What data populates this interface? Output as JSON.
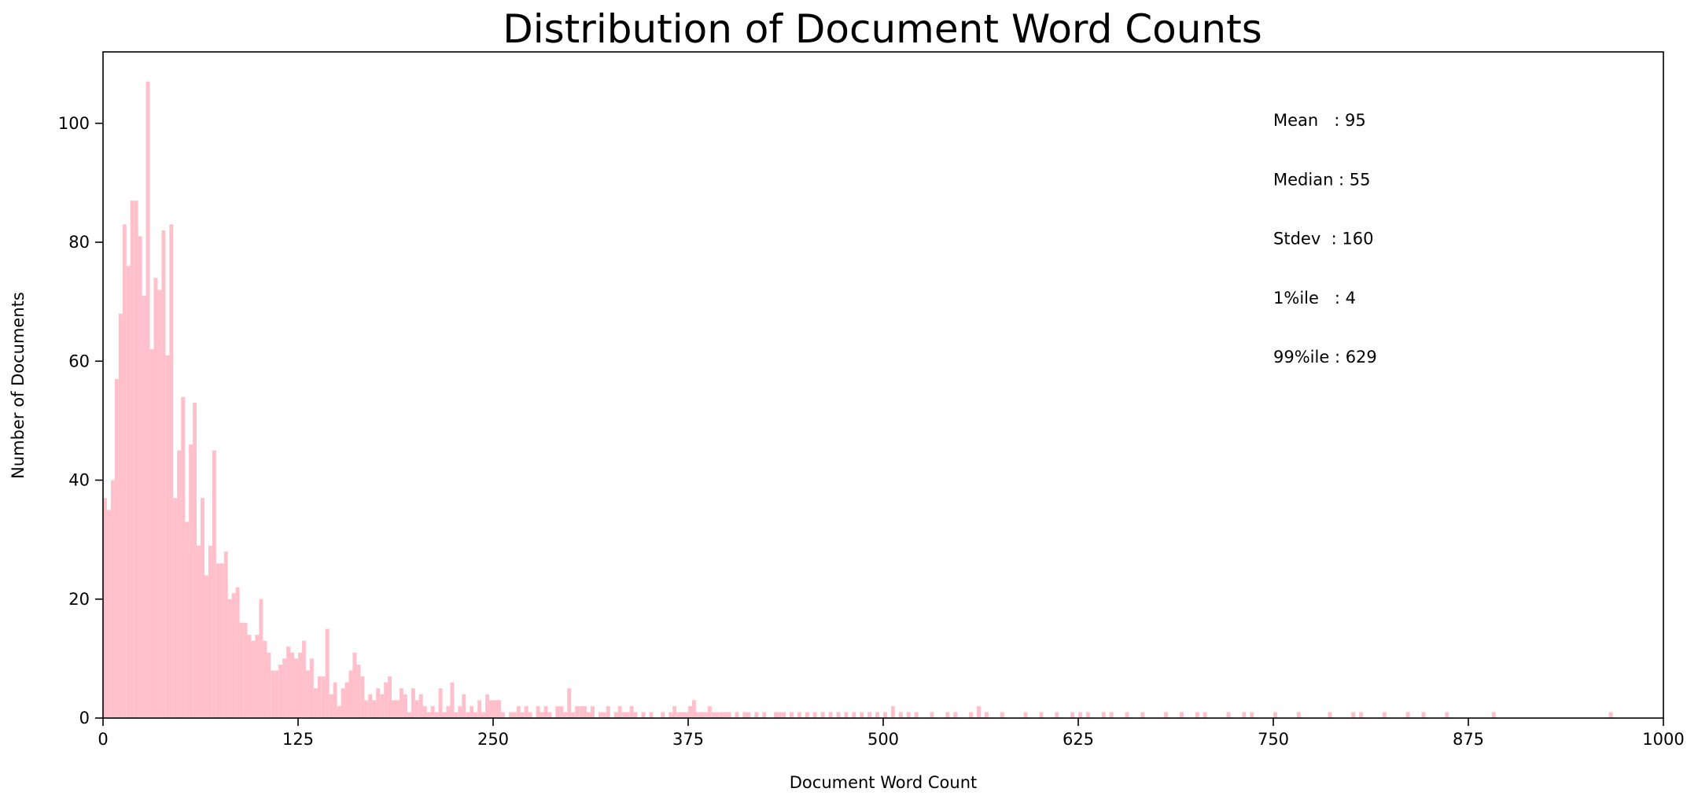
{
  "chart_data": {
    "type": "bar",
    "title": "Distribution of Document Word Counts",
    "xlabel": "Document Word Count",
    "ylabel": "Number of Documents",
    "xlim": [
      0,
      1000
    ],
    "ylim": [
      0,
      112
    ],
    "xticks": [
      0,
      125,
      250,
      375,
      500,
      625,
      750,
      875,
      1000
    ],
    "yticks": [
      0,
      20,
      40,
      60,
      80,
      100
    ],
    "bin_width": 2.5,
    "bar_color": "#ffc0cb",
    "grid": false,
    "legend": "none",
    "annotations": [
      {
        "label": "Mean   ",
        "value": "95"
      },
      {
        "label": "Median ",
        "value": "55"
      },
      {
        "label": "Stdev  ",
        "value": "160"
      },
      {
        "label": "1%ile   ",
        "value": "4"
      },
      {
        "label": "99%ile ",
        "value": "629"
      }
    ],
    "bins": [
      [
        0,
        37
      ],
      [
        2.5,
        35
      ],
      [
        5,
        40
      ],
      [
        7.5,
        57
      ],
      [
        10,
        68
      ],
      [
        12.5,
        83
      ],
      [
        15,
        76
      ],
      [
        17.5,
        87
      ],
      [
        20,
        87
      ],
      [
        22.5,
        81
      ],
      [
        25,
        71
      ],
      [
        27.5,
        107
      ],
      [
        30,
        62
      ],
      [
        32.5,
        74
      ],
      [
        35,
        72
      ],
      [
        37.5,
        82
      ],
      [
        40,
        61
      ],
      [
        42.5,
        83
      ],
      [
        45,
        37
      ],
      [
        47.5,
        45
      ],
      [
        50,
        54
      ],
      [
        52.5,
        33
      ],
      [
        55,
        46
      ],
      [
        57.5,
        53
      ],
      [
        60,
        29
      ],
      [
        62.5,
        37
      ],
      [
        65,
        24
      ],
      [
        67.5,
        29
      ],
      [
        70,
        45
      ],
      [
        72.5,
        26
      ],
      [
        75,
        26
      ],
      [
        77.5,
        28
      ],
      [
        80,
        20
      ],
      [
        82.5,
        21
      ],
      [
        85,
        22
      ],
      [
        87.5,
        16
      ],
      [
        90,
        16
      ],
      [
        92.5,
        14
      ],
      [
        95,
        13
      ],
      [
        97.5,
        14
      ],
      [
        100,
        20
      ],
      [
        102.5,
        13
      ],
      [
        105,
        11
      ],
      [
        107.5,
        8
      ],
      [
        110,
        8
      ],
      [
        112.5,
        9
      ],
      [
        115,
        10
      ],
      [
        117.5,
        12
      ],
      [
        120,
        11
      ],
      [
        122.5,
        10
      ],
      [
        125,
        11
      ],
      [
        127.5,
        13
      ],
      [
        130,
        8
      ],
      [
        132.5,
        10
      ],
      [
        135,
        5
      ],
      [
        137.5,
        7
      ],
      [
        140,
        7
      ],
      [
        142.5,
        15
      ],
      [
        145,
        4
      ],
      [
        147.5,
        6
      ],
      [
        150,
        2
      ],
      [
        152.5,
        5
      ],
      [
        155,
        6
      ],
      [
        157.5,
        8
      ],
      [
        160,
        11
      ],
      [
        162.5,
        9
      ],
      [
        165,
        7
      ],
      [
        167.5,
        3
      ],
      [
        170,
        4
      ],
      [
        172.5,
        3
      ],
      [
        175,
        5
      ],
      [
        177.5,
        4
      ],
      [
        180,
        6
      ],
      [
        182.5,
        7
      ],
      [
        185,
        3
      ],
      [
        187.5,
        3
      ],
      [
        190,
        5
      ],
      [
        192.5,
        4
      ],
      [
        195,
        1
      ],
      [
        197.5,
        5
      ],
      [
        200,
        3
      ],
      [
        202.5,
        4
      ],
      [
        205,
        2
      ],
      [
        207.5,
        1
      ],
      [
        210,
        2
      ],
      [
        212.5,
        1
      ],
      [
        215,
        5
      ],
      [
        217.5,
        1
      ],
      [
        220,
        2
      ],
      [
        222.5,
        6
      ],
      [
        225,
        1
      ],
      [
        227.5,
        2
      ],
      [
        230,
        4
      ],
      [
        232.5,
        1
      ],
      [
        235,
        2
      ],
      [
        237.5,
        1
      ],
      [
        240,
        3
      ],
      [
        242.5,
        1
      ],
      [
        245,
        4
      ],
      [
        247.5,
        3
      ],
      [
        250,
        3
      ],
      [
        252.5,
        3
      ],
      [
        255,
        1
      ],
      [
        260,
        1
      ],
      [
        262.5,
        1
      ],
      [
        265,
        2
      ],
      [
        267.5,
        1
      ],
      [
        270,
        2
      ],
      [
        272.5,
        1
      ],
      [
        277.5,
        2
      ],
      [
        280,
        1
      ],
      [
        282.5,
        2
      ],
      [
        285,
        1
      ],
      [
        290,
        2
      ],
      [
        292.5,
        2
      ],
      [
        295,
        1
      ],
      [
        297.5,
        5
      ],
      [
        300,
        1
      ],
      [
        302.5,
        2
      ],
      [
        305,
        2
      ],
      [
        307.5,
        2
      ],
      [
        310,
        1
      ],
      [
        312.5,
        2
      ],
      [
        317.5,
        1
      ],
      [
        320,
        1
      ],
      [
        322.5,
        2
      ],
      [
        327.5,
        1
      ],
      [
        330,
        2
      ],
      [
        332.5,
        1
      ],
      [
        335,
        1
      ],
      [
        337.5,
        2
      ],
      [
        340,
        1
      ],
      [
        345,
        1
      ],
      [
        350,
        1
      ],
      [
        357.5,
        1
      ],
      [
        362.5,
        1
      ],
      [
        365,
        2
      ],
      [
        367.5,
        1
      ],
      [
        370,
        1
      ],
      [
        372.5,
        1
      ],
      [
        375,
        2
      ],
      [
        377.5,
        3
      ],
      [
        380,
        1
      ],
      [
        382.5,
        1
      ],
      [
        385,
        1
      ],
      [
        387.5,
        2
      ],
      [
        390,
        1
      ],
      [
        392.5,
        1
      ],
      [
        395,
        1
      ],
      [
        397.5,
        1
      ],
      [
        400,
        1
      ],
      [
        405,
        1
      ],
      [
        410,
        1
      ],
      [
        412.5,
        1
      ],
      [
        417.5,
        1
      ],
      [
        422.5,
        1
      ],
      [
        430,
        1
      ],
      [
        432.5,
        1
      ],
      [
        435,
        1
      ],
      [
        440,
        1
      ],
      [
        445,
        1
      ],
      [
        450,
        1
      ],
      [
        455,
        1
      ],
      [
        460,
        1
      ],
      [
        465,
        1
      ],
      [
        470,
        1
      ],
      [
        475,
        1
      ],
      [
        480,
        1
      ],
      [
        485,
        1
      ],
      [
        490,
        1
      ],
      [
        495,
        1
      ],
      [
        500,
        1
      ],
      [
        505,
        2
      ],
      [
        510,
        1
      ],
      [
        515,
        1
      ],
      [
        520,
        1
      ],
      [
        530,
        1
      ],
      [
        540,
        1
      ],
      [
        545,
        1
      ],
      [
        555,
        1
      ],
      [
        560,
        2
      ],
      [
        565,
        1
      ],
      [
        575,
        1
      ],
      [
        590,
        1
      ],
      [
        600,
        1
      ],
      [
        610,
        1
      ],
      [
        620,
        1
      ],
      [
        625,
        1
      ],
      [
        630,
        1
      ],
      [
        640,
        1
      ],
      [
        645,
        1
      ],
      [
        655,
        1
      ],
      [
        665,
        1
      ],
      [
        680,
        1
      ],
      [
        690,
        1
      ],
      [
        700,
        1
      ],
      [
        705,
        1
      ],
      [
        720,
        1
      ],
      [
        730,
        1
      ],
      [
        735,
        1
      ],
      [
        750,
        1
      ],
      [
        765,
        1
      ],
      [
        785,
        1
      ],
      [
        800,
        1
      ],
      [
        805,
        1
      ],
      [
        820,
        1
      ],
      [
        835,
        1
      ],
      [
        845,
        1
      ],
      [
        860,
        1
      ],
      [
        890,
        1
      ],
      [
        965,
        1
      ]
    ]
  }
}
